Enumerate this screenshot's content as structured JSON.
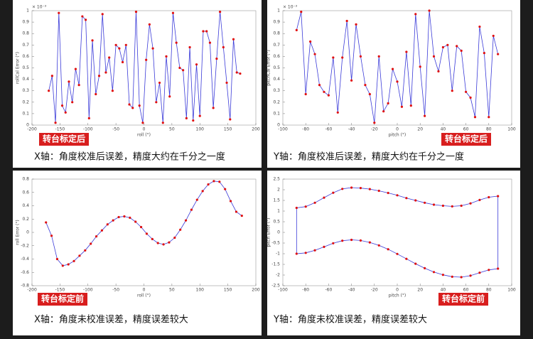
{
  "chart_data": [
    {
      "type": "line",
      "xlabel": "roll (°)",
      "ylabel": "rollCal Error (°)",
      "y_multiplier_label": "× 10⁻³",
      "badge": "转台标定后",
      "caption": "X轴：角度校准后误差，精度大约在千分之一度",
      "xlim": [
        -200,
        200
      ],
      "xticks": [
        -200,
        -150,
        -100,
        -50,
        0,
        50,
        100,
        150,
        200
      ],
      "ylim": [
        0,
        1
      ],
      "yticks": [
        0,
        0.1,
        0.2,
        0.3,
        0.4,
        0.5,
        0.6,
        0.7,
        0.8,
        0.9,
        1
      ],
      "x": [
        -170,
        -164,
        -158,
        -152,
        -146,
        -140,
        -134,
        -128,
        -122,
        -116,
        -110,
        -104,
        -98,
        -92,
        -86,
        -80,
        -74,
        -68,
        -62,
        -56,
        -50,
        -44,
        -38,
        -32,
        -26,
        -20,
        -14,
        -8,
        -2,
        4,
        10,
        16,
        22,
        28,
        34,
        40,
        46,
        52,
        58,
        64,
        70,
        76,
        82,
        88,
        94,
        100,
        106,
        112,
        118,
        124,
        130,
        136,
        142,
        148,
        154,
        160,
        166,
        172
      ],
      "series": [
        {
          "color": "#3a3ad8",
          "marker_color": "#e01010",
          "values": [
            0.3,
            0.43,
            0.02,
            0.98,
            0.17,
            0.11,
            0.38,
            0.2,
            0.49,
            0.35,
            0.95,
            0.92,
            0.06,
            0.74,
            0.27,
            0.43,
            0.97,
            0.46,
            0.59,
            0.3,
            0.7,
            0.67,
            0.55,
            0.7,
            0.18,
            0.15,
            0.99,
            0.17,
            0.02,
            0.57,
            0.88,
            0.67,
            0.2,
            0.37,
            0.02,
            0.6,
            0.25,
            0.98,
            0.72,
            0.5,
            0.48,
            0.06,
            0.68,
            0.04,
            0.53,
            0.08,
            0.82,
            0.82,
            0.72,
            0.15,
            0.58,
            0.99,
            0.68,
            0.37,
            0.05,
            0.75,
            0.46,
            0.45
          ]
        }
      ]
    },
    {
      "type": "line",
      "xlabel": "pitch (°)",
      "ylabel": "pitchCal Error (°)",
      "y_multiplier_label": "× 10⁻³",
      "badge": "转台标定后",
      "caption": "Y轴：角度校准后误差，精度大约在千分之一度",
      "xlim": [
        -100,
        100
      ],
      "xticks": [
        -100,
        -80,
        -60,
        -40,
        -20,
        0,
        20,
        40,
        60,
        80,
        100
      ],
      "ylim": [
        0,
        1
      ],
      "yticks": [
        0,
        0.1,
        0.2,
        0.3,
        0.4,
        0.5,
        0.6,
        0.7,
        0.8,
        0.9,
        1
      ],
      "x": [
        -88,
        -84,
        -80,
        -76,
        -72,
        -68,
        -64,
        -60,
        -56,
        -52,
        -48,
        -44,
        -40,
        -36,
        -32,
        -28,
        -24,
        -20,
        -16,
        -12,
        -8,
        -4,
        0,
        4,
        8,
        12,
        16,
        20,
        24,
        28,
        32,
        36,
        40,
        44,
        48,
        52,
        56,
        60,
        64,
        68,
        72,
        76,
        80,
        84,
        88
      ],
      "series": [
        {
          "color": "#3a3ad8",
          "marker_color": "#e01010",
          "values": [
            0.83,
            0.99,
            0.27,
            0.73,
            0.62,
            0.35,
            0.29,
            0.26,
            0.59,
            0.11,
            0.59,
            0.91,
            0.39,
            0.88,
            0.6,
            0.35,
            0.27,
            0.02,
            0.6,
            0.12,
            0.19,
            0.49,
            0.38,
            0.16,
            0.64,
            0.17,
            0.97,
            0.51,
            0.08,
            1.0,
            0.6,
            0.47,
            0.68,
            0.7,
            0.3,
            0.69,
            0.65,
            0.29,
            0.24,
            0.07,
            0.86,
            0.63,
            0.07,
            0.78,
            0.62
          ]
        }
      ]
    },
    {
      "type": "line",
      "xlabel": "roll (°)",
      "ylabel": "roll Error (°)",
      "badge": "转台标定前",
      "caption": "X轴：角度未校准误差，精度误差较大",
      "xlim": [
        -200,
        200
      ],
      "xticks": [
        -200,
        -150,
        -100,
        -50,
        0,
        50,
        100,
        150,
        200
      ],
      "ylim": [
        -0.8,
        0.8
      ],
      "yticks": [
        -0.8,
        -0.6,
        -0.4,
        -0.2,
        0,
        0.2,
        0.4,
        0.6,
        0.8
      ],
      "x": [
        -175,
        -165,
        -155,
        -145,
        -135,
        -125,
        -115,
        -105,
        -95,
        -85,
        -75,
        -65,
        -55,
        -45,
        -35,
        -25,
        -15,
        -5,
        5,
        15,
        25,
        35,
        45,
        55,
        65,
        75,
        85,
        95,
        105,
        115,
        125,
        135,
        145,
        155,
        165,
        175
      ],
      "series": [
        {
          "color": "#3a3ad8",
          "marker_color": "#e01010",
          "values": [
            0.15,
            -0.05,
            -0.4,
            -0.5,
            -0.48,
            -0.43,
            -0.35,
            -0.27,
            -0.17,
            -0.06,
            0.03,
            0.12,
            0.18,
            0.23,
            0.24,
            0.22,
            0.16,
            0.08,
            -0.02,
            -0.1,
            -0.16,
            -0.18,
            -0.15,
            -0.08,
            0.04,
            0.18,
            0.34,
            0.49,
            0.62,
            0.72,
            0.77,
            0.76,
            0.65,
            0.47,
            0.31,
            0.25
          ]
        }
      ]
    },
    {
      "type": "line",
      "xlabel": "pitch (°)",
      "ylabel": "pitch Error (°)",
      "closed_loop": true,
      "badge": "转台标定前",
      "caption": "Y轴：角度未校准误差，精度误差较大",
      "xlim": [
        -100,
        100
      ],
      "xticks": [
        -100,
        -80,
        -60,
        -40,
        -20,
        0,
        20,
        40,
        60,
        80,
        100
      ],
      "ylim": [
        -2.5,
        2.5
      ],
      "yticks": [
        -2.5,
        -2,
        -1.5,
        -1,
        -0.5,
        0,
        0.5,
        1,
        1.5,
        2,
        2.5
      ],
      "x": [
        -88,
        -80,
        -72,
        -64,
        -56,
        -48,
        -40,
        -32,
        -24,
        -16,
        -8,
        0,
        8,
        16,
        24,
        32,
        40,
        48,
        56,
        64,
        72,
        80,
        88,
        88,
        80,
        72,
        64,
        56,
        48,
        40,
        32,
        24,
        16,
        8,
        0,
        -8,
        -16,
        -24,
        -32,
        -40,
        -48,
        -56,
        -64,
        -72,
        -80,
        -88
      ],
      "series": [
        {
          "color": "#3a3ad8",
          "marker_color": "#e01010",
          "values": [
            1.15,
            1.21,
            1.39,
            1.63,
            1.86,
            2.04,
            2.1,
            2.08,
            2.03,
            1.95,
            1.85,
            1.74,
            1.61,
            1.5,
            1.39,
            1.3,
            1.25,
            1.22,
            1.25,
            1.36,
            1.52,
            1.65,
            1.7,
            -1.7,
            -1.76,
            -1.89,
            -2.03,
            -2.1,
            -2.08,
            -1.99,
            -1.86,
            -1.68,
            -1.47,
            -1.24,
            -1.01,
            -0.79,
            -0.61,
            -0.47,
            -0.38,
            -0.35,
            -0.39,
            -0.51,
            -0.68,
            -0.84,
            -0.96,
            -1.0
          ]
        }
      ]
    }
  ]
}
